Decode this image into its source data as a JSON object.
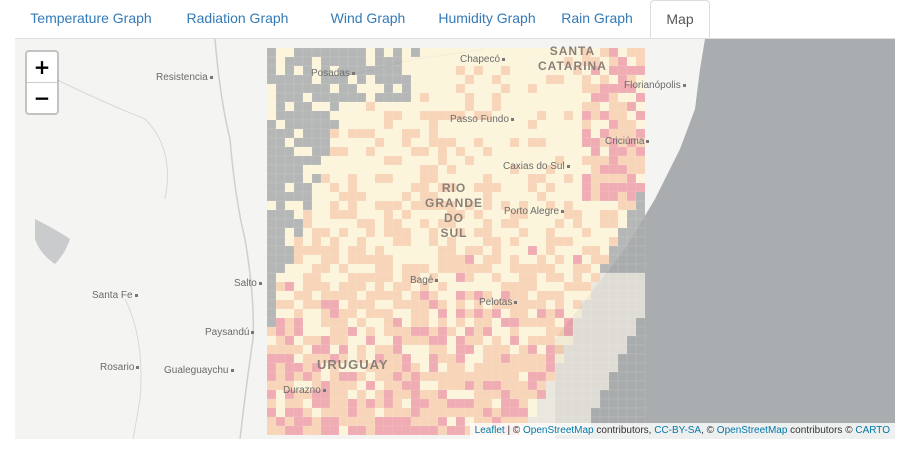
{
  "tabs": [
    {
      "label": "Temperature Graph"
    },
    {
      "label": "Radiation Graph"
    },
    {
      "label": "Wind Graph"
    },
    {
      "label": "Humidity Graph"
    },
    {
      "label": "Rain Graph"
    },
    {
      "label": "Map"
    }
  ],
  "active_tab": "Map",
  "map": {
    "zoom_in": "+",
    "zoom_out": "−",
    "attribution": {
      "leaflet": "Leaflet",
      "sep1": " | © ",
      "osm1": "OpenStreetMap",
      "contrib1": " contributors, ",
      "ccbysa": "CC-BY-SA",
      "sep2": ", © ",
      "osm2": "OpenStreetMap",
      "contrib2": " contributors © ",
      "carto": "CARTO"
    },
    "cities": {
      "resistencia": "Resistencia",
      "posadas": "Posadas",
      "chapeco": "Chapecó",
      "florianopolis": "Florianópolis",
      "passo_fundo": "Passo Fundo",
      "criciuma": "Criciúma",
      "caxias": "Caxias do Sul",
      "porto_alegre": "Porto Alegre",
      "santa_fe": "Santa Fe",
      "salto": "Salto",
      "bage": "Bagé",
      "pelotas": "Pelotas",
      "paysandu": "Paysandú",
      "rosario": "Rosario",
      "gualeguaychu": "Gualeguaychu",
      "durazno": "Durazno"
    },
    "regions": {
      "santa_catarina_1": "SANTA",
      "santa_catarina_2": "CATARINA",
      "rs_1": "RIO",
      "rs_2": "GRANDE DO",
      "rs_3": "SUL",
      "uruguay": "URUGUAY"
    },
    "colors": {
      "land": "#f4f4f2",
      "ocean": "#aaadb0",
      "raster_gray": "#a9abad",
      "low": "#fdf5d8",
      "mid": "#f8cfae",
      "high": "#ef9fa8"
    }
  }
}
